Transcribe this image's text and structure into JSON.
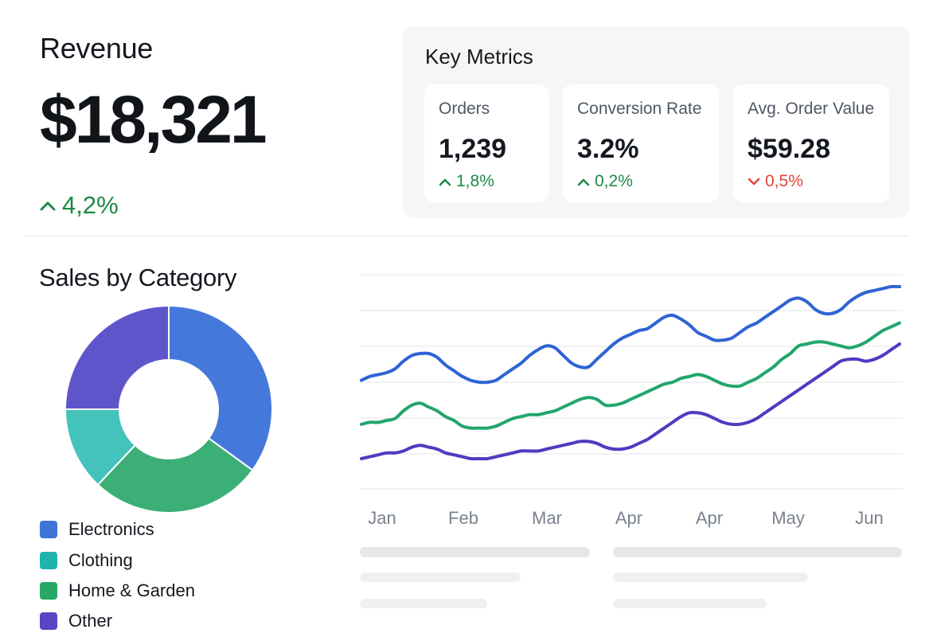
{
  "revenue": {
    "title": "Revenue",
    "value": "$18,321",
    "change": "4,2%",
    "change_direction": "up",
    "icon": "caret-up-icon"
  },
  "key_metrics": {
    "title": "Key Metrics",
    "cards": [
      {
        "label": "Orders",
        "value": "1,239",
        "change": "1,8%",
        "direction": "up",
        "icon": "caret-up-icon"
      },
      {
        "label": "Conversion Rate",
        "value": "3.2%",
        "change": "0,2%",
        "direction": "up",
        "icon": "caret-up-icon"
      },
      {
        "label": "Avg. Order Value",
        "value": "$59.28",
        "change": "0,5%",
        "direction": "down",
        "icon": "caret-down-icon"
      }
    ]
  },
  "sales_by_category": {
    "title": "Sales by Category",
    "legend": [
      {
        "label": "Electronics",
        "color": "#3f73d6"
      },
      {
        "label": "Clothing",
        "color": "#1fb3ad"
      },
      {
        "label": "Home & Garden",
        "color": "#28a866"
      },
      {
        "label": "Other",
        "color": "#5845c4"
      }
    ]
  },
  "colors": {
    "up": "#1a8a45",
    "down": "#e0443a",
    "donut_electronics": "#4479db",
    "donut_clothing": "#43c3bb",
    "donut_home": "#3caf77",
    "donut_other": "#5f55cb",
    "line_1": "#2f63d4",
    "line_2": "#22a66c",
    "line_3": "#4d3cc0"
  },
  "chart_data": [
    {
      "type": "pie",
      "title": "Sales by Category",
      "categories": [
        "Electronics",
        "Home & Garden",
        "Clothing",
        "Other"
      ],
      "values": [
        35,
        27,
        13,
        25
      ]
    },
    {
      "type": "line",
      "title": "",
      "categories": [
        "Jan",
        "Feb",
        "Mar",
        "Apr",
        "Apr",
        "May",
        "Jun"
      ],
      "x": [
        0,
        0.1,
        0.2,
        0.3,
        0.4,
        0.5,
        0.6,
        0.7,
        0.8,
        0.9,
        1.0,
        1.1,
        1.2,
        1.3,
        1.4,
        1.5,
        1.6,
        1.7,
        1.8,
        1.9,
        2.0,
        2.1,
        2.2,
        2.3,
        2.4,
        2.5,
        2.6,
        2.7,
        2.8,
        2.9,
        3.0,
        3.1,
        3.2,
        3.3,
        3.4,
        3.5,
        3.6,
        3.7,
        3.8,
        3.9,
        4.0,
        4.1,
        4.2,
        4.3,
        4.4,
        4.5,
        4.6,
        4.7,
        4.8,
        4.9,
        5.0,
        5.1,
        5.2,
        5.3,
        5.4,
        5.5,
        5.6,
        5.7,
        5.8,
        5.9,
        6.0,
        6.1,
        6.2,
        6.3,
        6.4
      ],
      "series": [
        {
          "values": [
            51,
            53,
            54,
            55,
            57,
            61,
            64,
            65,
            65,
            63,
            59,
            56,
            53,
            51,
            50,
            50,
            51,
            54,
            57,
            60,
            64,
            67,
            69,
            68,
            64,
            60,
            58,
            58,
            62,
            66,
            70,
            73,
            75,
            77,
            78,
            81,
            84,
            85,
            83,
            80,
            76,
            74,
            72,
            72,
            73,
            76,
            79,
            81,
            84,
            87,
            90,
            93,
            94,
            92,
            88,
            86,
            86,
            88,
            92,
            95,
            97,
            98,
            99,
            100,
            100
          ]
        },
        {
          "values": [
            28,
            29,
            29,
            30,
            31,
            35,
            38,
            39,
            37,
            35,
            32,
            30,
            27,
            26,
            26,
            26,
            27,
            29,
            31,
            32,
            33,
            33,
            34,
            35,
            37,
            39,
            41,
            42,
            41,
            38,
            38,
            39,
            41,
            43,
            45,
            47,
            49,
            50,
            52,
            53,
            54,
            53,
            51,
            49,
            48,
            48,
            50,
            52,
            55,
            58,
            62,
            65,
            69,
            70,
            71,
            71,
            70,
            69,
            68,
            69,
            71,
            74,
            77,
            79,
            81
          ]
        },
        {
          "values": [
            10,
            11,
            12,
            13,
            13,
            14,
            16,
            17,
            16,
            15,
            13,
            12,
            11,
            10,
            10,
            10,
            11,
            12,
            13,
            14,
            14,
            14,
            15,
            16,
            17,
            18,
            19,
            19,
            18,
            16,
            15,
            15,
            16,
            18,
            20,
            23,
            26,
            29,
            32,
            34,
            34,
            33,
            31,
            29,
            28,
            28,
            29,
            31,
            34,
            37,
            40,
            43,
            46,
            49,
            52,
            55,
            58,
            61,
            62,
            62,
            61,
            62,
            64,
            67,
            70
          ]
        }
      ]
    }
  ]
}
